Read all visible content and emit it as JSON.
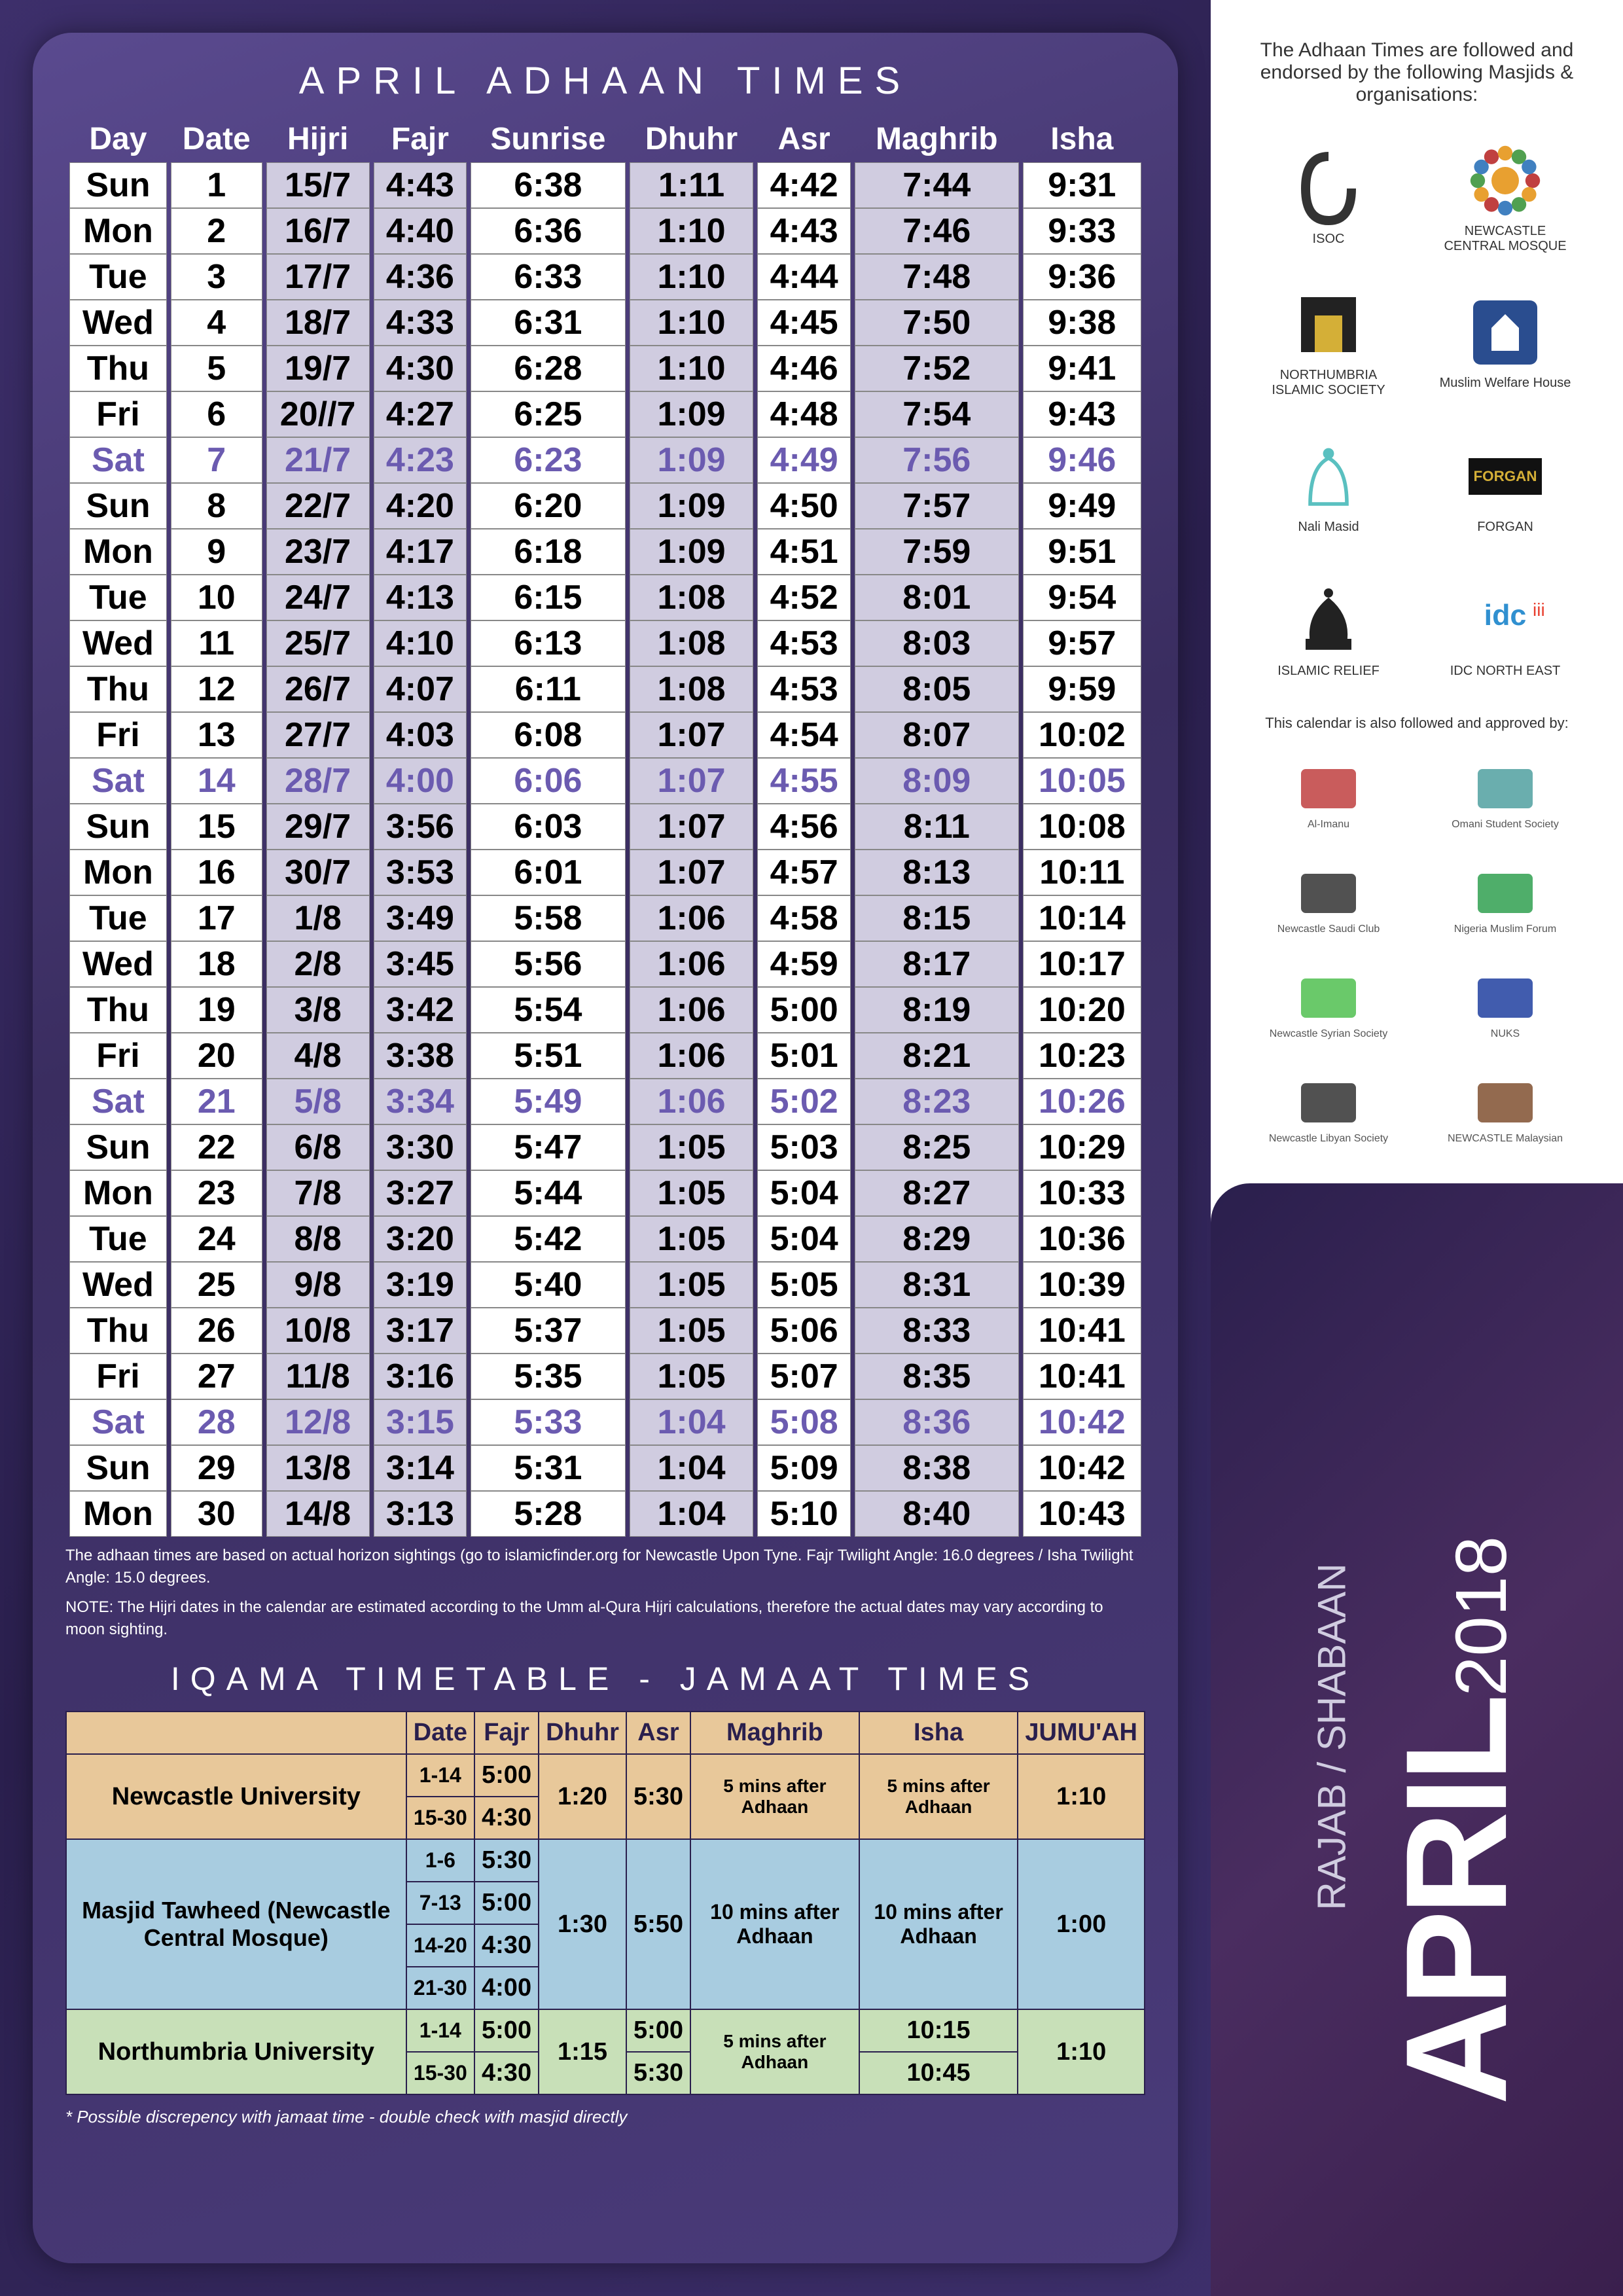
{
  "title": "APRIL ADHAAN  TIMES",
  "headers": [
    "Day",
    "Date",
    "Hijri",
    "Fajr",
    "Sunrise",
    "Dhuhr",
    "Asr",
    "Maghrib",
    "Isha"
  ],
  "rows": [
    {
      "sat": false,
      "c": [
        "Sun",
        "1",
        "15/7",
        "4:43",
        "6:38",
        "1:11",
        "4:42",
        "7:44",
        "9:31"
      ]
    },
    {
      "sat": false,
      "c": [
        "Mon",
        "2",
        "16/7",
        "4:40",
        "6:36",
        "1:10",
        "4:43",
        "7:46",
        "9:33"
      ]
    },
    {
      "sat": false,
      "c": [
        "Tue",
        "3",
        "17/7",
        "4:36",
        "6:33",
        "1:10",
        "4:44",
        "7:48",
        "9:36"
      ]
    },
    {
      "sat": false,
      "c": [
        "Wed",
        "4",
        "18/7",
        "4:33",
        "6:31",
        "1:10",
        "4:45",
        "7:50",
        "9:38"
      ]
    },
    {
      "sat": false,
      "c": [
        "Thu",
        "5",
        "19/7",
        "4:30",
        "6:28",
        "1:10",
        "4:46",
        "7:52",
        "9:41"
      ]
    },
    {
      "sat": false,
      "c": [
        "Fri",
        "6",
        "20//7",
        "4:27",
        "6:25",
        "1:09",
        "4:48",
        "7:54",
        "9:43"
      ]
    },
    {
      "sat": true,
      "c": [
        "Sat",
        "7",
        "21/7",
        "4:23",
        "6:23",
        "1:09",
        "4:49",
        "7:56",
        "9:46"
      ]
    },
    {
      "sat": false,
      "c": [
        "Sun",
        "8",
        "22/7",
        "4:20",
        "6:20",
        "1:09",
        "4:50",
        "7:57",
        "9:49"
      ]
    },
    {
      "sat": false,
      "c": [
        "Mon",
        "9",
        "23/7",
        "4:17",
        "6:18",
        "1:09",
        "4:51",
        "7:59",
        "9:51"
      ]
    },
    {
      "sat": false,
      "c": [
        "Tue",
        "10",
        "24/7",
        "4:13",
        "6:15",
        "1:08",
        "4:52",
        "8:01",
        "9:54"
      ]
    },
    {
      "sat": false,
      "c": [
        "Wed",
        "11",
        "25/7",
        "4:10",
        "6:13",
        "1:08",
        "4:53",
        "8:03",
        "9:57"
      ]
    },
    {
      "sat": false,
      "c": [
        "Thu",
        "12",
        "26/7",
        "4:07",
        "6:11",
        "1:08",
        "4:53",
        "8:05",
        "9:59"
      ]
    },
    {
      "sat": false,
      "c": [
        "Fri",
        "13",
        "27/7",
        "4:03",
        "6:08",
        "1:07",
        "4:54",
        "8:07",
        "10:02"
      ]
    },
    {
      "sat": true,
      "c": [
        "Sat",
        "14",
        "28/7",
        "4:00",
        "6:06",
        "1:07",
        "4:55",
        "8:09",
        "10:05"
      ]
    },
    {
      "sat": false,
      "c": [
        "Sun",
        "15",
        "29/7",
        "3:56",
        "6:03",
        "1:07",
        "4:56",
        "8:11",
        "10:08"
      ]
    },
    {
      "sat": false,
      "c": [
        "Mon",
        "16",
        "30/7",
        "3:53",
        "6:01",
        "1:07",
        "4:57",
        "8:13",
        "10:11"
      ]
    },
    {
      "sat": false,
      "c": [
        "Tue",
        "17",
        "1/8",
        "3:49",
        "5:58",
        "1:06",
        "4:58",
        "8:15",
        "10:14"
      ]
    },
    {
      "sat": false,
      "c": [
        "Wed",
        "18",
        "2/8",
        "3:45",
        "5:56",
        "1:06",
        "4:59",
        "8:17",
        "10:17"
      ]
    },
    {
      "sat": false,
      "c": [
        "Thu",
        "19",
        "3/8",
        "3:42",
        "5:54",
        "1:06",
        "5:00",
        "8:19",
        "10:20"
      ]
    },
    {
      "sat": false,
      "c": [
        "Fri",
        "20",
        "4/8",
        "3:38",
        "5:51",
        "1:06",
        "5:01",
        "8:21",
        "10:23"
      ]
    },
    {
      "sat": true,
      "c": [
        "Sat",
        "21",
        "5/8",
        "3:34",
        "5:49",
        "1:06",
        "5:02",
        "8:23",
        "10:26"
      ]
    },
    {
      "sat": false,
      "c": [
        "Sun",
        "22",
        "6/8",
        "3:30",
        "5:47",
        "1:05",
        "5:03",
        "8:25",
        "10:29"
      ]
    },
    {
      "sat": false,
      "c": [
        "Mon",
        "23",
        "7/8",
        "3:27",
        "5:44",
        "1:05",
        "5:04",
        "8:27",
        "10:33"
      ]
    },
    {
      "sat": false,
      "c": [
        "Tue",
        "24",
        "8/8",
        "3:20",
        "5:42",
        "1:05",
        "5:04",
        "8:29",
        "10:36"
      ]
    },
    {
      "sat": false,
      "c": [
        "Wed",
        "25",
        "9/8",
        "3:19",
        "5:40",
        "1:05",
        "5:05",
        "8:31",
        "10:39"
      ]
    },
    {
      "sat": false,
      "c": [
        "Thu",
        "26",
        "10/8",
        "3:17",
        "5:37",
        "1:05",
        "5:06",
        "8:33",
        "10:41"
      ]
    },
    {
      "sat": false,
      "c": [
        "Fri",
        "27",
        "11/8",
        "3:16",
        "5:35",
        "1:05",
        "5:07",
        "8:35",
        "10:41"
      ]
    },
    {
      "sat": true,
      "c": [
        "Sat",
        "28",
        "12/8",
        "3:15",
        "5:33",
        "1:04",
        "5:08",
        "8:36",
        "10:42"
      ]
    },
    {
      "sat": false,
      "c": [
        "Sun",
        "29",
        "13/8",
        "3:14",
        "5:31",
        "1:04",
        "5:09",
        "8:38",
        "10:42"
      ]
    },
    {
      "sat": false,
      "c": [
        "Mon",
        "30",
        "14/8",
        "3:13",
        "5:28",
        "1:04",
        "5:10",
        "8:40",
        "10:43"
      ]
    }
  ],
  "alt_cols": [
    2,
    3,
    5,
    7
  ],
  "notes1": "The adhaan times are based on actual horizon sightings (go to islamicfinder.org for Newcastle Upon Tyne. Fajr Twilight Angle: 16.0 degrees / Isha Twilight Angle: 15.0 degrees.",
  "notes2": "NOTE: The Hijri dates in the calendar are estimated according to the Umm al-Qura Hijri calculations, therefore the actual dates may vary according to moon sighting.",
  "iqama_title": "IQAMA TIMETABLE - JAMAAT TIMES",
  "iqama_headers": [
    "",
    "Date",
    "Fajr",
    "Dhuhr",
    "Asr",
    "Maghrib",
    "Isha",
    "JUMU'AH"
  ],
  "iqama": {
    "org1": {
      "name": "Newcastle University",
      "rows": [
        {
          "date": "1-14",
          "fajr": "5:00"
        },
        {
          "date": "15-30",
          "fajr": "4:30"
        }
      ],
      "dhuhr": "1:20",
      "asr": "5:30",
      "maghrib": "5 mins after Adhaan",
      "isha": "5 mins after Adhaan",
      "jumuah": "1:10"
    },
    "org2": {
      "name": "Masjid Tawheed (Newcastle Central Mosque)",
      "rows": [
        {
          "date": "1-6",
          "fajr": "5:30"
        },
        {
          "date": "7-13",
          "fajr": "5:00"
        },
        {
          "date": "14-20",
          "fajr": "4:30"
        },
        {
          "date": "21-30",
          "fajr": "4:00"
        }
      ],
      "dhuhr": "1:30",
      "asr": "5:50",
      "maghrib": "10 mins after Adhaan",
      "isha": "10 mins after Adhaan",
      "jumuah": "1:00"
    },
    "org3": {
      "name": "Northumbria University",
      "rows": [
        {
          "date": "1-14",
          "fajr": "5:00",
          "asr": "5:00",
          "isha": "10:15"
        },
        {
          "date": "15-30",
          "fajr": "4:30",
          "asr": "5:30",
          "isha": "10:45"
        }
      ],
      "dhuhr": "1:15",
      "maghrib": "5 mins after Adhaan",
      "jumuah": "1:10"
    }
  },
  "iqama_note": "* Possible discrepency with jamaat time - double check with masjid directly",
  "sidebar": {
    "endorsed": "The Adhaan Times are followed and endorsed by the following Masjids & organisations:",
    "logos": [
      {
        "label": "ISOC",
        "color": "#333"
      },
      {
        "label": "NEWCASTLE CENTRAL MOSQUE",
        "color": "#e8a030"
      },
      {
        "label": "NORTHUMBRIA ISLAMIC SOCIETY",
        "color": "#222"
      },
      {
        "label": "Muslim Welfare House",
        "color": "#2a4d8f"
      },
      {
        "label": "Nali Masid",
        "color": "#5ac0c0"
      },
      {
        "label": "FORGAN",
        "color": "#111"
      },
      {
        "label": "ISLAMIC RELIEF",
        "color": "#222"
      },
      {
        "label": "IDC NORTH EAST",
        "color": "#3090d0"
      }
    ],
    "approved": "This calendar is also followed and approved by:",
    "sm_logos": [
      {
        "label": "Al-Imanu"
      },
      {
        "label": "Omani Student Society"
      },
      {
        "label": "Newcastle Saudi Club"
      },
      {
        "label": "Nigeria Muslim Forum"
      },
      {
        "label": "Newcastle Syrian Society"
      },
      {
        "label": "NUKS"
      },
      {
        "label": "Newcastle Libyan Society"
      },
      {
        "label": "NEWCASTLE Malaysian"
      }
    ]
  },
  "month": {
    "main": "APRIL",
    "year": "2018",
    "hijri": "RAJAB / SHABAAN"
  },
  "colors": {
    "card_bg": "#4a3b7a",
    "alt_cell": "#d0cce0",
    "sat_text": "#6b5bb0",
    "org1_bg": "#e8c89a",
    "org2_bg": "#a8cce0",
    "org3_bg": "#c8e0b8"
  }
}
